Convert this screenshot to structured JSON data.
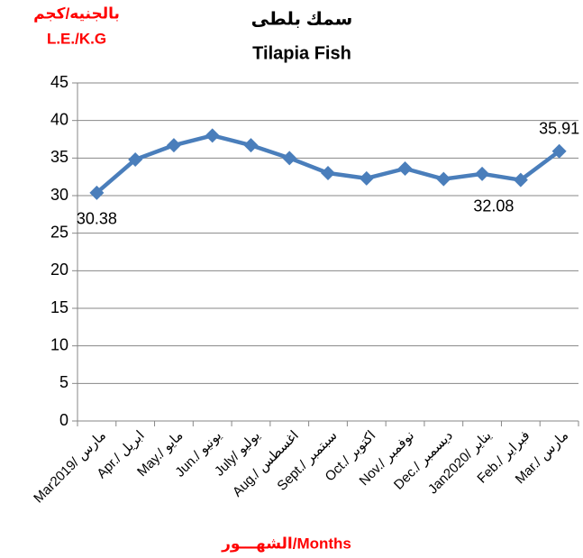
{
  "chart_data": {
    "type": "line",
    "title": [
      "سمك بلطى",
      "Tilapia Fish"
    ],
    "y_label": [
      "بالجنيه/كجم",
      "L.E./K.G"
    ],
    "x_label": "الشهـــور/Months",
    "categories": [
      "Mar2019/ مارس",
      "Apr./ ابريل",
      "May./ مايو",
      "Jun./ يونيو",
      "July/ يوليو",
      "Aug./ اغسطس",
      "Sept./ سبتمبر",
      "Oct./ اكتوبر",
      "Nov./ نوفمبر",
      "Dec./ ديسمبر",
      "Jan2020/ يناير",
      "Feb./ فبراير",
      "Mar./ مارس"
    ],
    "values": [
      30.38,
      34.8,
      36.7,
      38.0,
      36.7,
      35.0,
      33.0,
      32.3,
      33.6,
      32.2,
      32.9,
      32.08,
      35.91
    ],
    "value_labels": [
      "30.38",
      null,
      null,
      null,
      null,
      null,
      null,
      null,
      null,
      null,
      null,
      "32.08",
      "35.91"
    ],
    "color": "#4a7ebb",
    "ylim": [
      0,
      45
    ],
    "yticks": [
      0,
      5,
      10,
      15,
      20,
      25,
      30,
      35,
      40,
      45
    ],
    "grid": true
  }
}
